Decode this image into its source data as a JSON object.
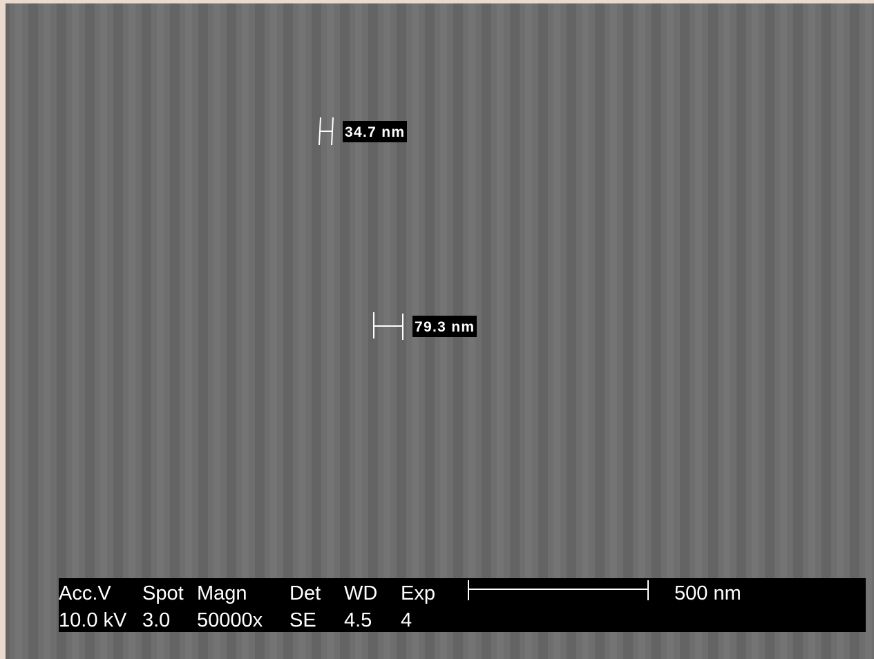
{
  "measurements": [
    {
      "label": "34.7 nm"
    },
    {
      "label": "79.3 nm"
    }
  ],
  "info_bar": {
    "headers": [
      "Acc.V",
      "Spot",
      "Magn",
      "Det",
      "WD",
      "Exp"
    ],
    "values": [
      "10.0 kV",
      "3.0",
      "50000x",
      "SE",
      "4.5",
      "4"
    ],
    "scale_label": "500 nm"
  }
}
